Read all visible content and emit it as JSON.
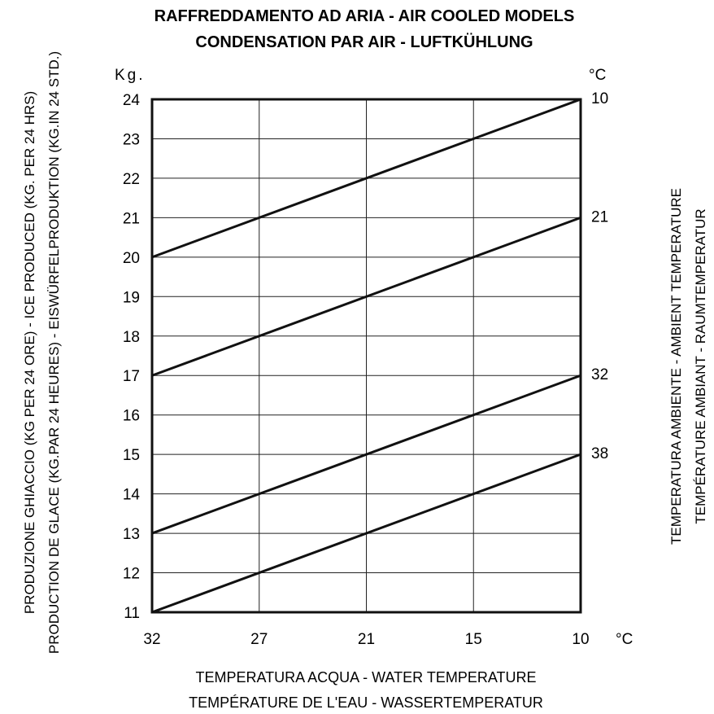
{
  "chart_data": {
    "type": "line",
    "title": [
      "RAFFREDDAMENTO AD ARIA - AIR COOLED MODELS",
      "CONDENSATION PAR AIR - LUFTKÜHLUNG"
    ],
    "xlabel": [
      "TEMPERATURA ACQUA - WATER TEMPERATURE",
      "TEMPÉRATURE DE L'EAU  - WASSERTEMPERATUR"
    ],
    "ylabel": [
      "PRODUZIONE GHIACCIO (KG PER 24 ORE) - ICE PRODUCED (KG. PER 24 HRS)",
      "PRODUCTION DE GLACE (KG.PAR 24 HEURES) - EISWÜRFELPRODUKTION (KG.IN 24 STD.)"
    ],
    "right_label": [
      "TEMPERATURA AMBIENTE - AMBIENT TEMPERATURE",
      "TEMPÉRATURE AMBIANT - RAUMTEMPERATUR"
    ],
    "y_unit": "Kg.",
    "x_unit": "°C",
    "right_unit": "°C",
    "x_ticks": [
      "32",
      "27",
      "21",
      "15",
      "10"
    ],
    "x": [
      32,
      10
    ],
    "ylim": [
      11,
      24
    ],
    "y_ticks": [
      11,
      12,
      13,
      14,
      15,
      16,
      17,
      18,
      19,
      20,
      21,
      22,
      23,
      24
    ],
    "grid": true,
    "series": [
      {
        "name": "10",
        "values": [
          20,
          24
        ]
      },
      {
        "name": "21",
        "values": [
          17,
          21
        ]
      },
      {
        "name": "32",
        "values": [
          13,
          17
        ]
      },
      {
        "name": "38",
        "values": [
          11,
          15
        ]
      }
    ]
  }
}
